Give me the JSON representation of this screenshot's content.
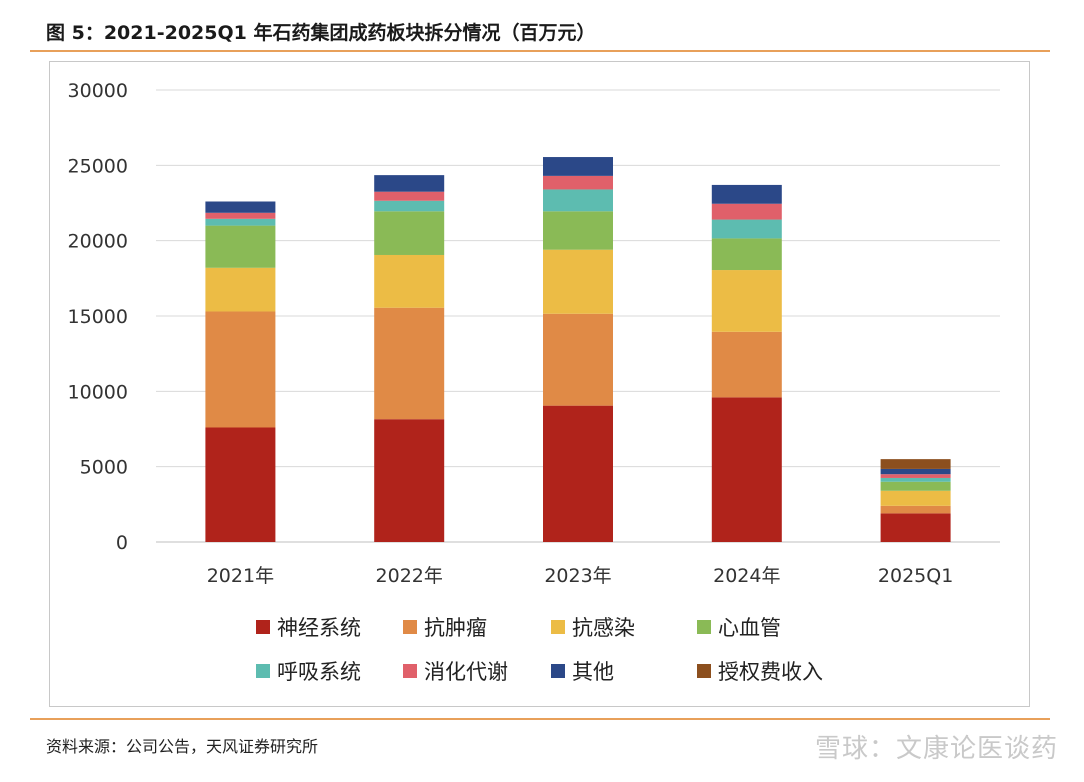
{
  "figure": {
    "title": "图 5：2021-2025Q1 年石药集团成药板块拆分情况（百万元）",
    "source": "资料来源：公司公告，天风证券研究所",
    "watermark": "雪球：文康论医谈药"
  },
  "chart_data": {
    "type": "bar",
    "stacked": true,
    "categories": [
      "2021年",
      "2022年",
      "2023年",
      "2024年",
      "2025Q1"
    ],
    "ylim": [
      0,
      30000
    ],
    "yticks": [
      0,
      5000,
      10000,
      15000,
      20000,
      25000,
      30000
    ],
    "grid": true,
    "legend_position": "bottom",
    "series": [
      {
        "name": "神经系统",
        "color": "#b0231b",
        "values": [
          7600,
          8150,
          9050,
          9600,
          1900
        ]
      },
      {
        "name": "抗肿瘤",
        "color": "#e08a46",
        "values": [
          7700,
          7400,
          6100,
          4350,
          500
        ]
      },
      {
        "name": "抗感染",
        "color": "#ecbc45",
        "values": [
          2900,
          3500,
          4250,
          4100,
          1000
        ]
      },
      {
        "name": "心血管",
        "color": "#8aba56",
        "values": [
          2800,
          2900,
          2550,
          2100,
          600
        ]
      },
      {
        "name": "呼吸系统",
        "color": "#5dbcb0",
        "values": [
          450,
          700,
          1450,
          1250,
          250
        ]
      },
      {
        "name": "消化代谢",
        "color": "#e0606a",
        "values": [
          400,
          600,
          900,
          1050,
          250
        ]
      },
      {
        "name": "其他",
        "color": "#2b4888",
        "values": [
          750,
          1100,
          1250,
          1250,
          350
        ]
      },
      {
        "name": "授权费收入",
        "color": "#8c4f1e",
        "values": [
          0,
          0,
          0,
          0,
          650
        ]
      }
    ]
  }
}
